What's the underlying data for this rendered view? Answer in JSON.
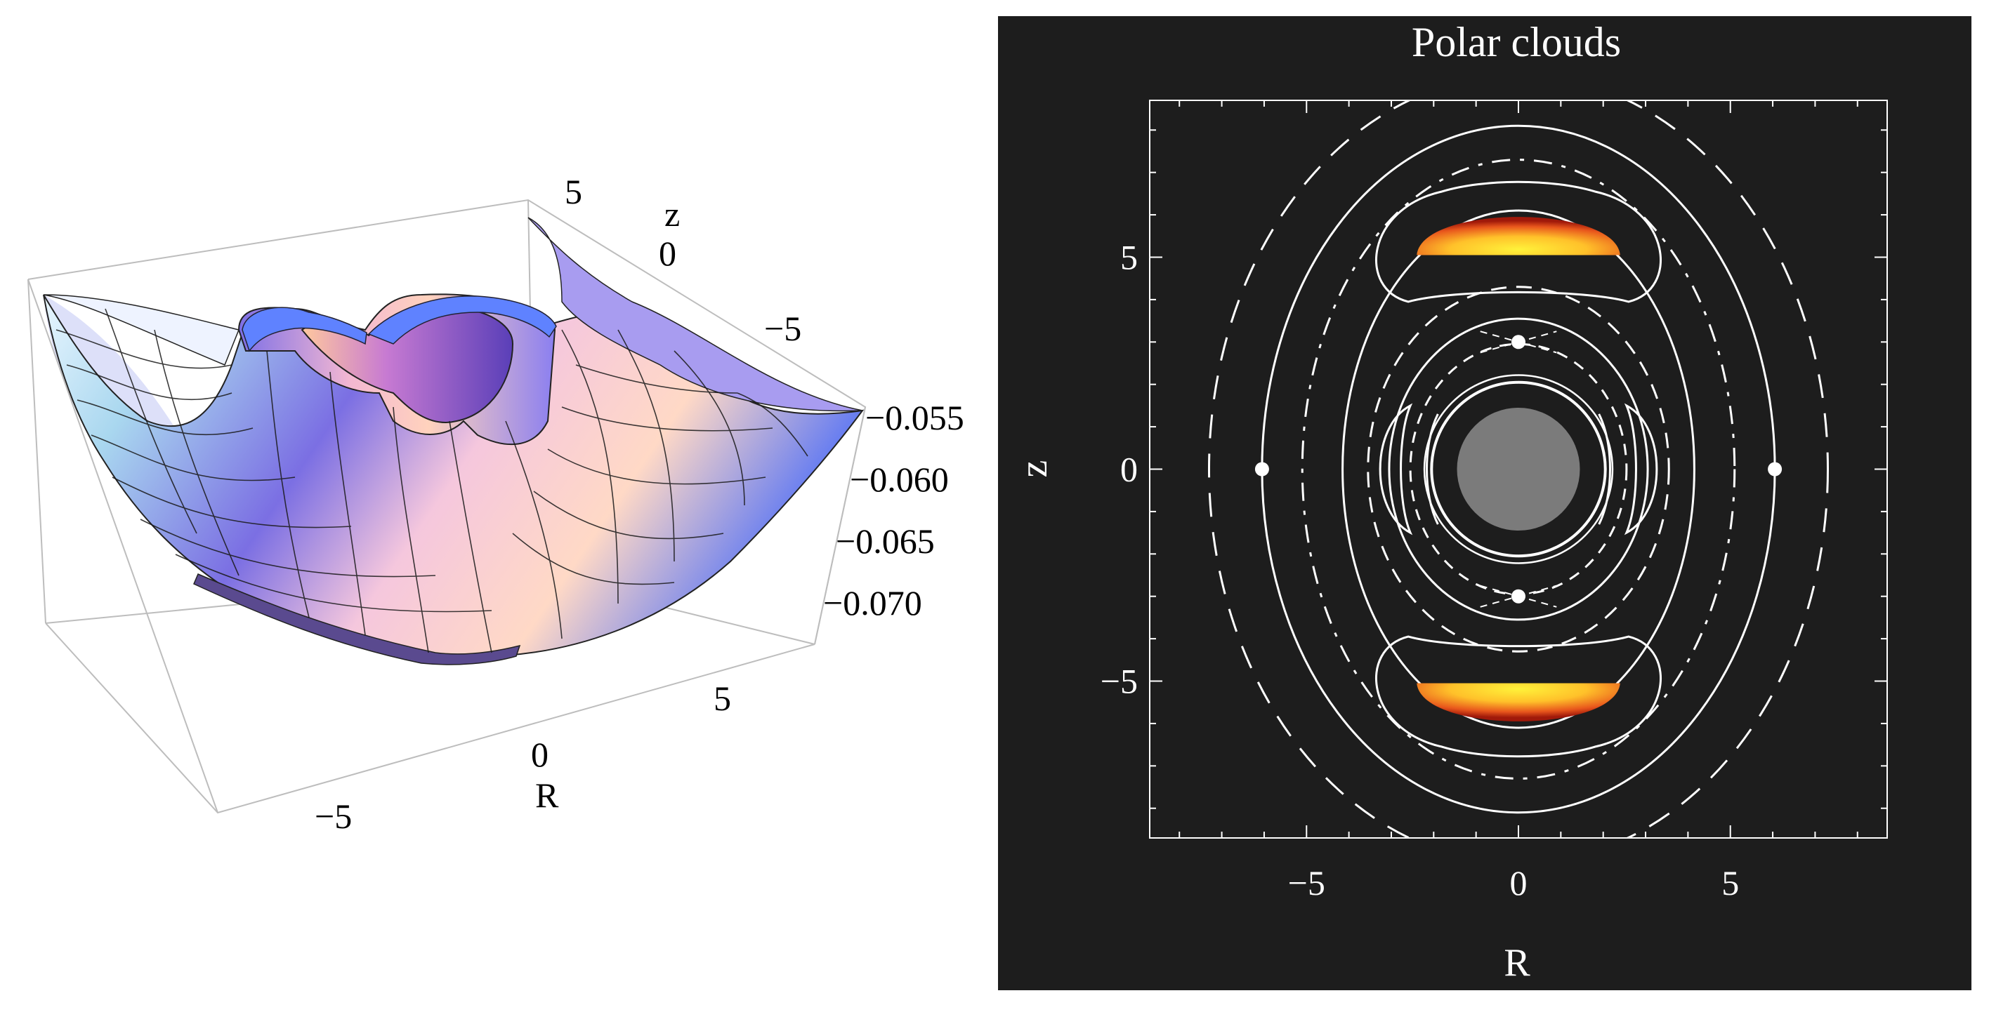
{
  "chart_data": [
    {
      "type": "surface3d",
      "title": "",
      "xlabel": "R",
      "ylabel": "z",
      "zlabel": "",
      "x_ticks": [
        "−5",
        "0",
        "5"
      ],
      "y_ticks": [
        "5",
        "0",
        "−5"
      ],
      "z_ticks": [
        "−0.055",
        "−0.060",
        "−0.065",
        "−0.070"
      ],
      "xlim": [
        -8,
        8
      ],
      "ylim": [
        -8,
        8
      ],
      "zlim": [
        -0.072,
        -0.055
      ],
      "colors": {
        "surface_light": "#f6d4e2",
        "surface_mid": "#c7a6ec",
        "surface_dark": "#6a5fdc",
        "cut_rim": "#5f82ff",
        "box": "#b8b8b8"
      }
    },
    {
      "type": "contour",
      "title": "Polar clouds",
      "xlabel": "R",
      "ylabel": "z",
      "x_ticks": [
        "−5",
        "0",
        "5"
      ],
      "y_ticks": [
        "5",
        "0",
        "−5"
      ],
      "xlim": [
        -8.7,
        8.7
      ],
      "ylim": [
        -8.7,
        8.7
      ],
      "central_body_radius": 1.45,
      "critical_points": [
        {
          "R": 0,
          "z": 3
        },
        {
          "R": 0,
          "z": -3
        },
        {
          "R": -6.05,
          "z": 0
        },
        {
          "R": 6.05,
          "z": 0
        }
      ],
      "clouds": [
        {
          "z_base": 5.05,
          "z_top": 6.25,
          "half_width": 2.4
        },
        {
          "z_base": -5.05,
          "z_top": -6.25,
          "half_width": 2.4
        }
      ],
      "colors": {
        "background": "#1d1d1d",
        "lines": "#ffffff",
        "body": "#7b7b7b",
        "cloud_hot": "#fff23a",
        "cloud_edge": "#a0190a"
      }
    }
  ]
}
